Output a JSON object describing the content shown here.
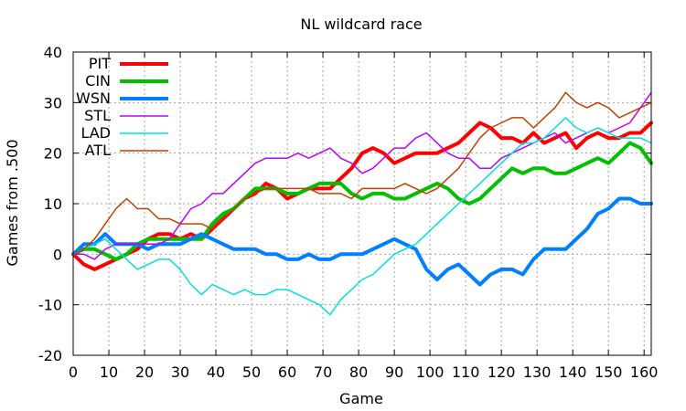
{
  "chart_data": {
    "type": "line",
    "title": "NL wildcard race",
    "xlabel": "Game",
    "ylabel": "Games from .500",
    "xlim": [
      0,
      162
    ],
    "ylim": [
      -20,
      40
    ],
    "xticks": [
      0,
      10,
      20,
      30,
      40,
      50,
      60,
      70,
      80,
      90,
      100,
      110,
      120,
      130,
      140,
      150,
      160
    ],
    "yticks": [
      -20,
      -10,
      0,
      10,
      20,
      30,
      40
    ],
    "grid": true,
    "legend_position": "top-left",
    "series": [
      {
        "name": "PIT",
        "color": "#ff0000",
        "width": 4,
        "points": [
          [
            0,
            0
          ],
          [
            3,
            -2
          ],
          [
            6,
            -3
          ],
          [
            9,
            -2
          ],
          [
            12,
            -1
          ],
          [
            15,
            0
          ],
          [
            18,
            1
          ],
          [
            21,
            3
          ],
          [
            24,
            4
          ],
          [
            27,
            4
          ],
          [
            30,
            3
          ],
          [
            33,
            4
          ],
          [
            36,
            3
          ],
          [
            39,
            5
          ],
          [
            42,
            7
          ],
          [
            45,
            9
          ],
          [
            48,
            11
          ],
          [
            51,
            12
          ],
          [
            54,
            14
          ],
          [
            57,
            13
          ],
          [
            60,
            11
          ],
          [
            63,
            12
          ],
          [
            66,
            13
          ],
          [
            69,
            13
          ],
          [
            72,
            13
          ],
          [
            75,
            15
          ],
          [
            78,
            17
          ],
          [
            81,
            20
          ],
          [
            84,
            21
          ],
          [
            87,
            20
          ],
          [
            90,
            18
          ],
          [
            93,
            19
          ],
          [
            96,
            20
          ],
          [
            99,
            20
          ],
          [
            102,
            20
          ],
          [
            105,
            21
          ],
          [
            108,
            22
          ],
          [
            111,
            24
          ],
          [
            114,
            26
          ],
          [
            117,
            25
          ],
          [
            120,
            23
          ],
          [
            123,
            23
          ],
          [
            126,
            22
          ],
          [
            129,
            24
          ],
          [
            132,
            22
          ],
          [
            135,
            23
          ],
          [
            138,
            24
          ],
          [
            141,
            21
          ],
          [
            144,
            23
          ],
          [
            147,
            24
          ],
          [
            150,
            23
          ],
          [
            153,
            23
          ],
          [
            156,
            24
          ],
          [
            159,
            24
          ],
          [
            162,
            26
          ]
        ]
      },
      {
        "name": "CIN",
        "color": "#00c000",
        "width": 4,
        "points": [
          [
            0,
            0
          ],
          [
            3,
            1
          ],
          [
            6,
            1
          ],
          [
            9,
            0
          ],
          [
            12,
            -1
          ],
          [
            15,
            0
          ],
          [
            18,
            2
          ],
          [
            21,
            3
          ],
          [
            24,
            3
          ],
          [
            27,
            3
          ],
          [
            30,
            3
          ],
          [
            33,
            3
          ],
          [
            36,
            3
          ],
          [
            39,
            6
          ],
          [
            42,
            8
          ],
          [
            45,
            9
          ],
          [
            48,
            11
          ],
          [
            51,
            13
          ],
          [
            54,
            13
          ],
          [
            57,
            13
          ],
          [
            60,
            12
          ],
          [
            63,
            12
          ],
          [
            66,
            13
          ],
          [
            69,
            14
          ],
          [
            72,
            14
          ],
          [
            75,
            14
          ],
          [
            78,
            12
          ],
          [
            81,
            11
          ],
          [
            84,
            12
          ],
          [
            87,
            12
          ],
          [
            90,
            11
          ],
          [
            93,
            11
          ],
          [
            96,
            12
          ],
          [
            99,
            13
          ],
          [
            102,
            14
          ],
          [
            105,
            13
          ],
          [
            108,
            11
          ],
          [
            111,
            10
          ],
          [
            114,
            11
          ],
          [
            117,
            13
          ],
          [
            120,
            15
          ],
          [
            123,
            17
          ],
          [
            126,
            16
          ],
          [
            129,
            17
          ],
          [
            132,
            17
          ],
          [
            135,
            16
          ],
          [
            138,
            16
          ],
          [
            141,
            17
          ],
          [
            144,
            18
          ],
          [
            147,
            19
          ],
          [
            150,
            18
          ],
          [
            153,
            20
          ],
          [
            156,
            22
          ],
          [
            159,
            21
          ],
          [
            162,
            18
          ]
        ]
      },
      {
        "name": "WSN",
        "color": "#0080ff",
        "width": 4,
        "points": [
          [
            0,
            0
          ],
          [
            3,
            2
          ],
          [
            6,
            2
          ],
          [
            9,
            4
          ],
          [
            12,
            2
          ],
          [
            15,
            2
          ],
          [
            18,
            2
          ],
          [
            21,
            1
          ],
          [
            24,
            2
          ],
          [
            27,
            2
          ],
          [
            30,
            2
          ],
          [
            33,
            3
          ],
          [
            36,
            4
          ],
          [
            39,
            3
          ],
          [
            42,
            2
          ],
          [
            45,
            1
          ],
          [
            48,
            1
          ],
          [
            51,
            1
          ],
          [
            54,
            0
          ],
          [
            57,
            0
          ],
          [
            60,
            -1
          ],
          [
            63,
            -1
          ],
          [
            66,
            0
          ],
          [
            69,
            -1
          ],
          [
            72,
            -1
          ],
          [
            75,
            0
          ],
          [
            78,
            0
          ],
          [
            81,
            0
          ],
          [
            84,
            1
          ],
          [
            87,
            2
          ],
          [
            90,
            3
          ],
          [
            93,
            2
          ],
          [
            96,
            1
          ],
          [
            99,
            -3
          ],
          [
            102,
            -5
          ],
          [
            105,
            -3
          ],
          [
            108,
            -2
          ],
          [
            111,
            -4
          ],
          [
            114,
            -6
          ],
          [
            117,
            -4
          ],
          [
            120,
            -3
          ],
          [
            123,
            -3
          ],
          [
            126,
            -4
          ],
          [
            129,
            -1
          ],
          [
            132,
            1
          ],
          [
            135,
            1
          ],
          [
            138,
            1
          ],
          [
            141,
            3
          ],
          [
            144,
            5
          ],
          [
            147,
            8
          ],
          [
            150,
            9
          ],
          [
            153,
            11
          ],
          [
            156,
            11
          ],
          [
            159,
            10
          ],
          [
            162,
            10
          ]
        ]
      },
      {
        "name": "STL",
        "color": "#c000ff",
        "width": 1.5,
        "points": [
          [
            0,
            0
          ],
          [
            3,
            0
          ],
          [
            6,
            -1
          ],
          [
            9,
            1
          ],
          [
            12,
            2
          ],
          [
            15,
            2
          ],
          [
            18,
            2
          ],
          [
            21,
            2
          ],
          [
            24,
            2
          ],
          [
            27,
            3
          ],
          [
            30,
            6
          ],
          [
            33,
            9
          ],
          [
            36,
            10
          ],
          [
            39,
            12
          ],
          [
            42,
            12
          ],
          [
            45,
            14
          ],
          [
            48,
            16
          ],
          [
            51,
            18
          ],
          [
            54,
            19
          ],
          [
            57,
            19
          ],
          [
            60,
            19
          ],
          [
            63,
            20
          ],
          [
            66,
            19
          ],
          [
            69,
            20
          ],
          [
            72,
            21
          ],
          [
            75,
            19
          ],
          [
            78,
            18
          ],
          [
            81,
            16
          ],
          [
            84,
            17
          ],
          [
            87,
            19
          ],
          [
            90,
            21
          ],
          [
            93,
            21
          ],
          [
            96,
            23
          ],
          [
            99,
            24
          ],
          [
            102,
            22
          ],
          [
            105,
            20
          ],
          [
            108,
            19
          ],
          [
            111,
            19
          ],
          [
            114,
            17
          ],
          [
            117,
            17
          ],
          [
            120,
            19
          ],
          [
            123,
            20
          ],
          [
            126,
            21
          ],
          [
            129,
            22
          ],
          [
            132,
            23
          ],
          [
            135,
            24
          ],
          [
            138,
            22
          ],
          [
            141,
            23
          ],
          [
            144,
            24
          ],
          [
            147,
            25
          ],
          [
            150,
            24
          ],
          [
            153,
            25
          ],
          [
            156,
            26
          ],
          [
            159,
            29
          ],
          [
            162,
            32
          ]
        ]
      },
      {
        "name": "LAD",
        "color": "#00e0e0",
        "width": 1.5,
        "points": [
          [
            0,
            0
          ],
          [
            3,
            1
          ],
          [
            6,
            2
          ],
          [
            9,
            3
          ],
          [
            12,
            1
          ],
          [
            15,
            -1
          ],
          [
            18,
            -3
          ],
          [
            21,
            -2
          ],
          [
            24,
            -1
          ],
          [
            27,
            -1
          ],
          [
            30,
            -3
          ],
          [
            33,
            -6
          ],
          [
            36,
            -8
          ],
          [
            39,
            -6
          ],
          [
            42,
            -7
          ],
          [
            45,
            -8
          ],
          [
            48,
            -7
          ],
          [
            51,
            -8
          ],
          [
            54,
            -8
          ],
          [
            57,
            -7
          ],
          [
            60,
            -7
          ],
          [
            63,
            -8
          ],
          [
            66,
            -9
          ],
          [
            69,
            -10
          ],
          [
            72,
            -12
          ],
          [
            75,
            -9
          ],
          [
            78,
            -7
          ],
          [
            81,
            -5
          ],
          [
            84,
            -4
          ],
          [
            87,
            -2
          ],
          [
            90,
            0
          ],
          [
            93,
            1
          ],
          [
            96,
            2
          ],
          [
            99,
            4
          ],
          [
            102,
            6
          ],
          [
            105,
            8
          ],
          [
            108,
            10
          ],
          [
            111,
            12
          ],
          [
            114,
            14
          ],
          [
            117,
            16
          ],
          [
            120,
            18
          ],
          [
            123,
            20
          ],
          [
            126,
            22
          ],
          [
            129,
            22
          ],
          [
            132,
            23
          ],
          [
            135,
            25
          ],
          [
            138,
            27
          ],
          [
            141,
            25
          ],
          [
            144,
            24
          ],
          [
            147,
            25
          ],
          [
            150,
            24
          ],
          [
            153,
            23
          ],
          [
            156,
            23
          ],
          [
            159,
            23
          ],
          [
            162,
            22
          ]
        ]
      },
      {
        "name": "ATL",
        "color": "#c04000",
        "width": 1.5,
        "points": [
          [
            0,
            0
          ],
          [
            3,
            1
          ],
          [
            6,
            3
          ],
          [
            9,
            6
          ],
          [
            12,
            9
          ],
          [
            15,
            11
          ],
          [
            18,
            9
          ],
          [
            21,
            9
          ],
          [
            24,
            7
          ],
          [
            27,
            7
          ],
          [
            30,
            6
          ],
          [
            33,
            6
          ],
          [
            36,
            6
          ],
          [
            39,
            5
          ],
          [
            42,
            7
          ],
          [
            45,
            9
          ],
          [
            48,
            11
          ],
          [
            51,
            12
          ],
          [
            54,
            13
          ],
          [
            57,
            13
          ],
          [
            60,
            13
          ],
          [
            63,
            13
          ],
          [
            66,
            13
          ],
          [
            69,
            12
          ],
          [
            72,
            12
          ],
          [
            75,
            12
          ],
          [
            78,
            11
          ],
          [
            81,
            13
          ],
          [
            84,
            13
          ],
          [
            87,
            13
          ],
          [
            90,
            13
          ],
          [
            93,
            14
          ],
          [
            96,
            13
          ],
          [
            99,
            12
          ],
          [
            102,
            13
          ],
          [
            105,
            15
          ],
          [
            108,
            17
          ],
          [
            111,
            20
          ],
          [
            114,
            23
          ],
          [
            117,
            25
          ],
          [
            120,
            26
          ],
          [
            123,
            27
          ],
          [
            126,
            27
          ],
          [
            129,
            25
          ],
          [
            132,
            27
          ],
          [
            135,
            29
          ],
          [
            138,
            32
          ],
          [
            141,
            30
          ],
          [
            144,
            29
          ],
          [
            147,
            30
          ],
          [
            150,
            29
          ],
          [
            153,
            27
          ],
          [
            156,
            28
          ],
          [
            159,
            29
          ],
          [
            162,
            30
          ]
        ]
      }
    ]
  }
}
